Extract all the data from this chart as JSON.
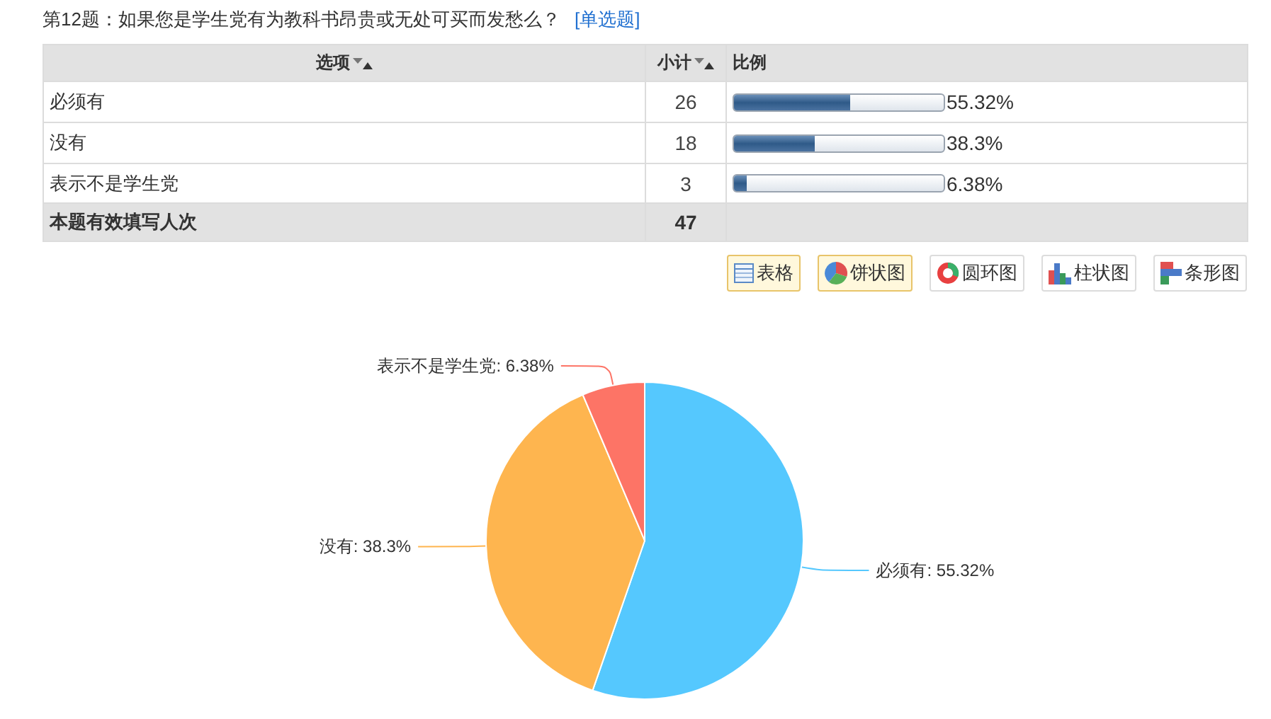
{
  "chart_data": [
    {
      "type": "other",
      "title": "第12题：如果您是学生党有为教科书昂贵或无处可买而发愁么？",
      "subtitle": "[单选题]",
      "categories": [
        "必须有",
        "没有",
        "表示不是学生党"
      ],
      "series": [
        {
          "name": "小计",
          "values": [
            26,
            18,
            3
          ]
        },
        {
          "name": "比例",
          "values": [
            55.32,
            38.3,
            6.38
          ],
          "value_labels": [
            "55.32%",
            "38.3%",
            "6.38%"
          ]
        }
      ],
      "data_labels": true,
      "totals": [
        "47"
      ],
      "annotations": [
        "选项",
        "本题有效填写人次"
      ]
    },
    {
      "type": "pie",
      "categories": [
        "必须有",
        "没有",
        "表示不是学生党"
      ],
      "values": [
        55.32,
        38.3,
        6.38
      ],
      "colors": [
        "#55c8fe",
        "#feb54f",
        "#fd7466"
      ],
      "value_labels": [
        "55.32%",
        "38.3%",
        "6.38%"
      ],
      "annotations": [
        "表格",
        "饼状图",
        "圆环图",
        "柱状图",
        "条形图"
      ]
    }
  ]
}
